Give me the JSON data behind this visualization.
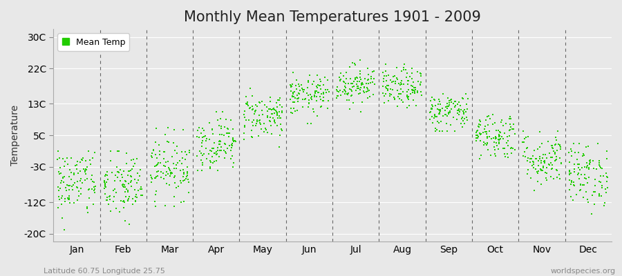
{
  "title": "Monthly Mean Temperatures 1901 - 2009",
  "ylabel": "Temperature",
  "xlabel_labels": [
    "Jan",
    "Feb",
    "Mar",
    "Apr",
    "May",
    "Jun",
    "Jul",
    "Aug",
    "Sep",
    "Oct",
    "Nov",
    "Dec"
  ],
  "ytick_labels": [
    "-20C",
    "-12C",
    "-3C",
    "5C",
    "13C",
    "22C",
    "30C"
  ],
  "ytick_values": [
    -20,
    -12,
    -3,
    5,
    13,
    22,
    30
  ],
  "ylim": [
    -22,
    32
  ],
  "dot_color": "#22cc00",
  "background_color": "#e8e8e8",
  "legend_label": "Mean Temp",
  "footer_left": "Latitude 60.75 Longitude 25.75",
  "footer_right": "worldspecies.org",
  "title_fontsize": 15,
  "axis_fontsize": 10,
  "footer_fontsize": 8,
  "n_years": 109,
  "seed": 42,
  "monthly_means": [
    -7,
    -8,
    -3,
    3,
    10,
    15,
    18,
    17,
    11,
    5,
    -1,
    -5
  ],
  "monthly_stds": [
    4.5,
    4.5,
    4.0,
    3.5,
    3.0,
    2.5,
    2.5,
    2.5,
    2.5,
    3.0,
    3.5,
    4.0
  ],
  "monthly_mins": [
    -21,
    -21,
    -13,
    -4,
    2,
    8,
    11,
    10,
    6,
    -1,
    -9,
    -15
  ],
  "monthly_maxs": [
    1,
    1,
    7,
    11,
    17,
    22,
    25,
    23,
    18,
    13,
    6,
    3
  ]
}
